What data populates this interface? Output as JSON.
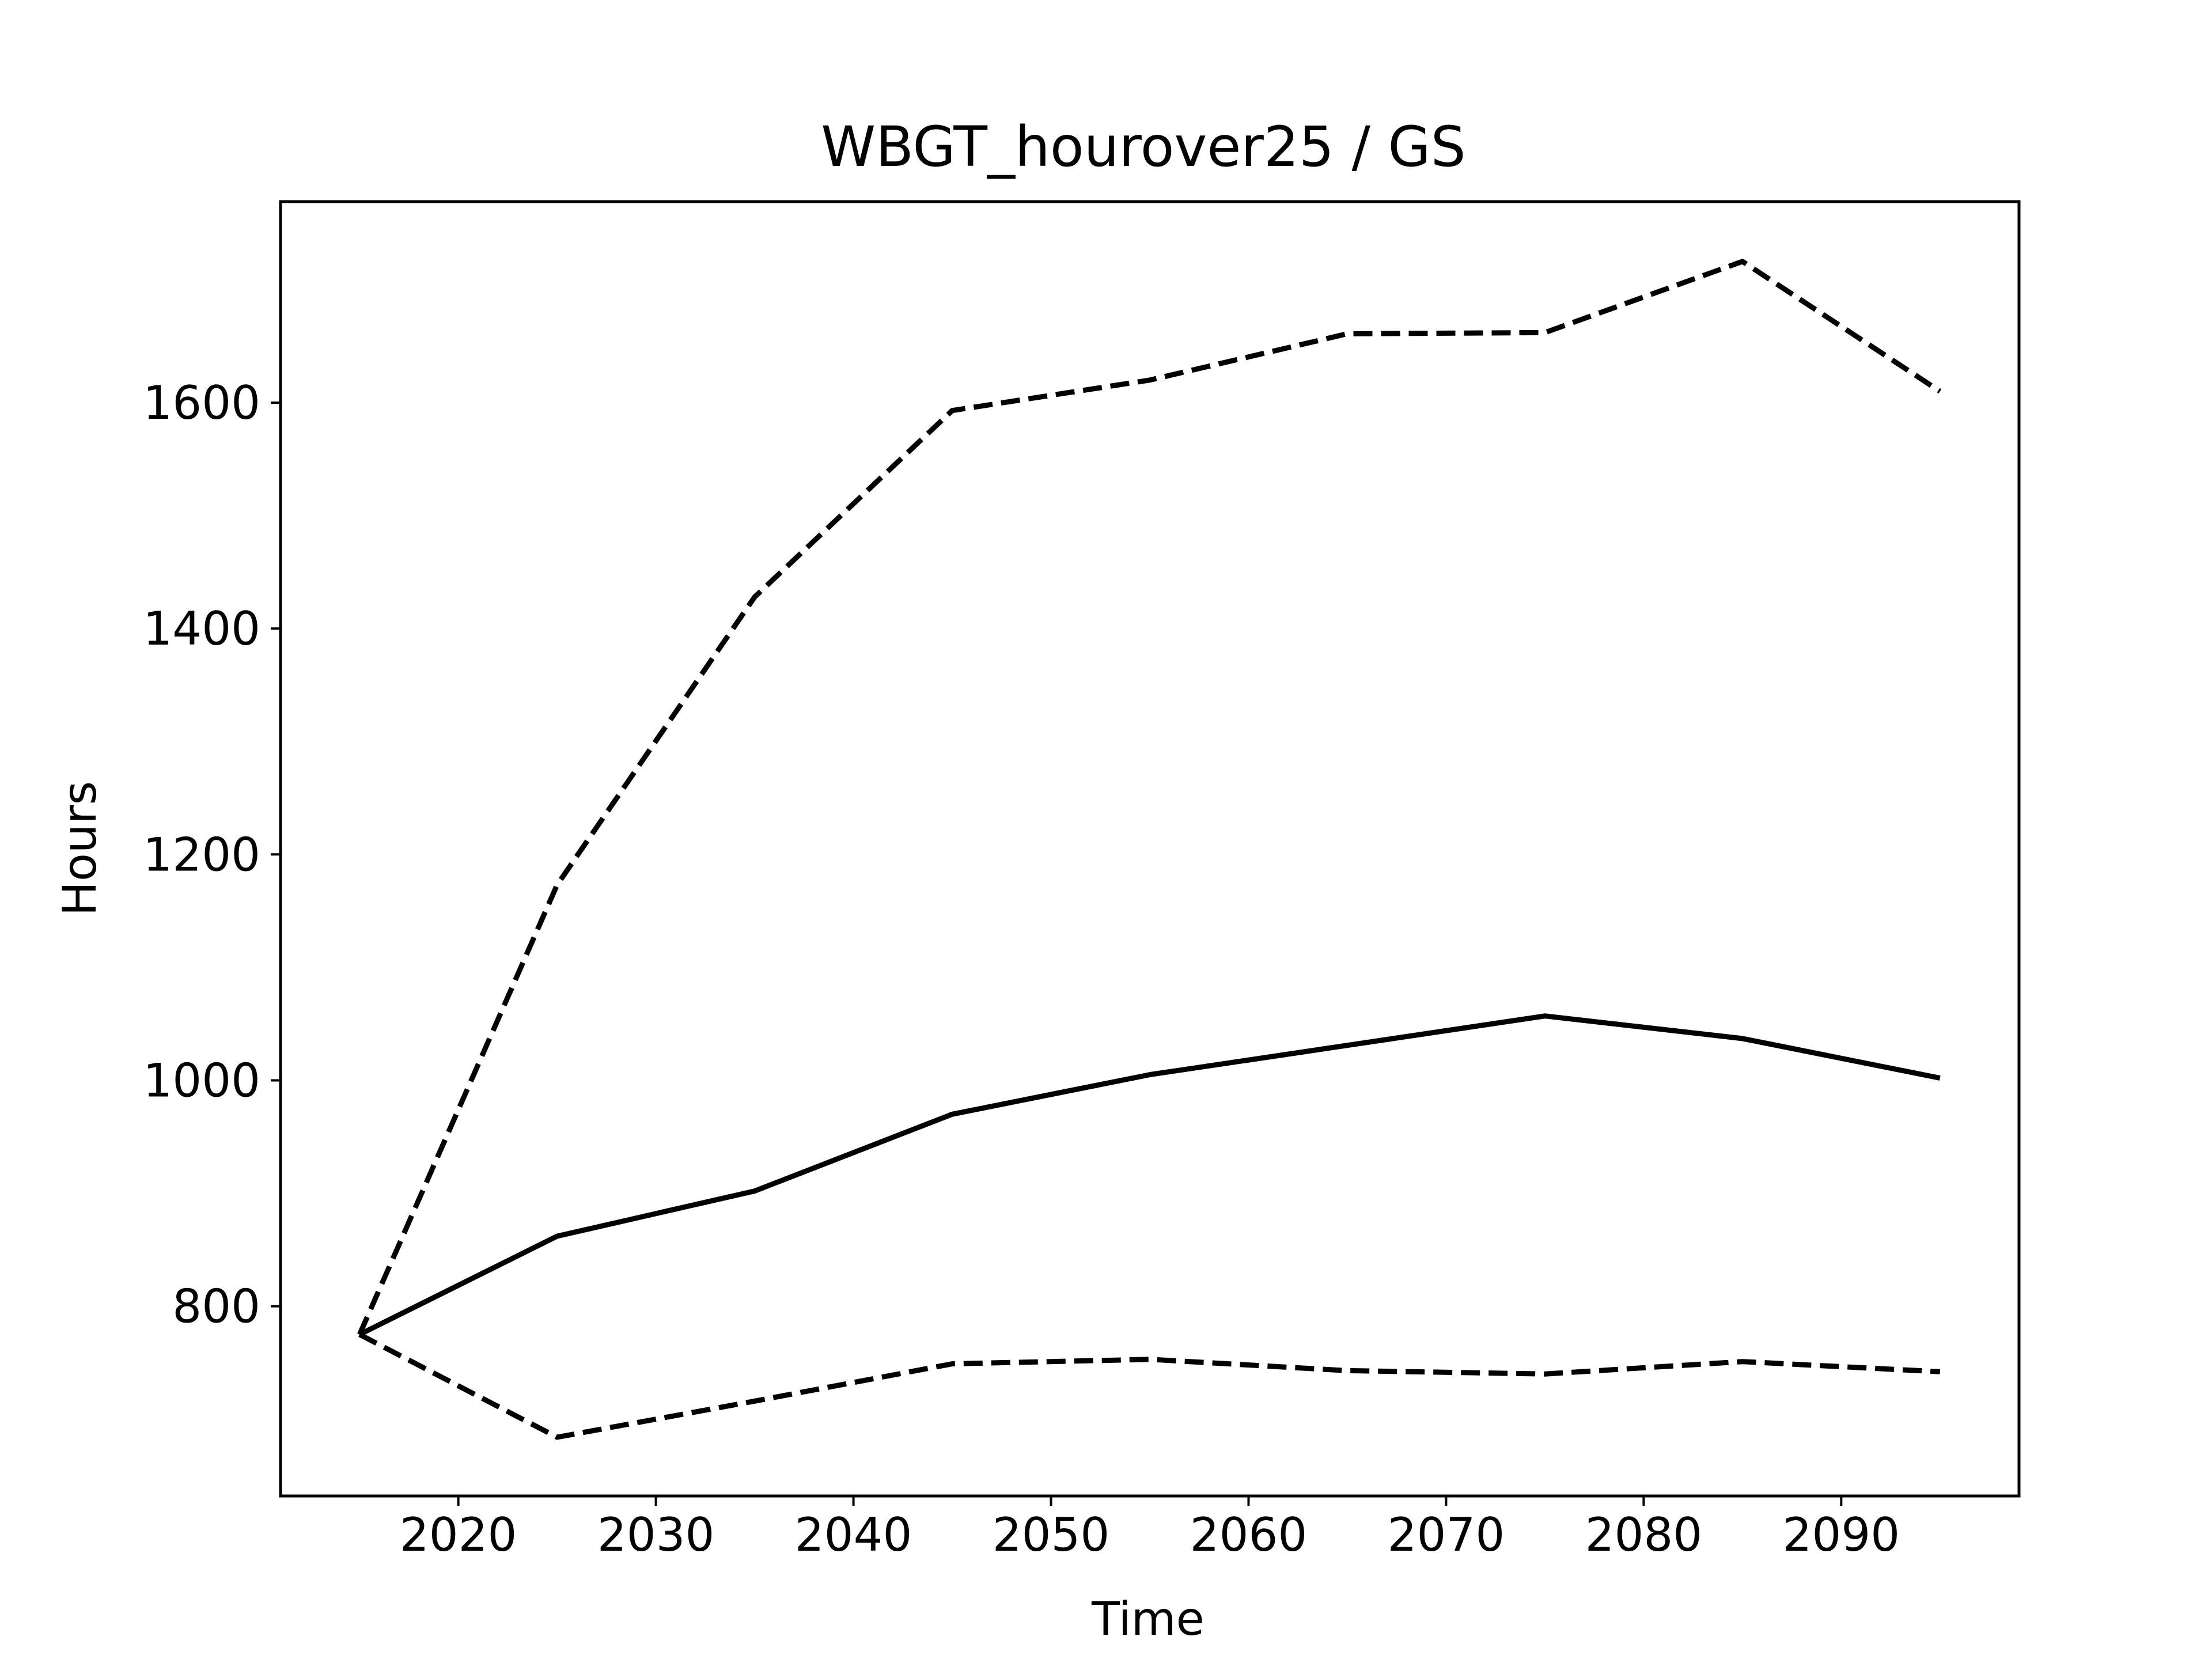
{
  "chart_data": {
    "type": "line",
    "title": "WBGT_hourover25 / GS",
    "xlabel": "Time",
    "ylabel": "Hours",
    "xlim": [
      2011,
      2099
    ],
    "ylim": [
      632,
      1778
    ],
    "grid": false,
    "x": [
      2015,
      2025,
      2035,
      2045,
      2055,
      2065,
      2075,
      2085,
      2095
    ],
    "xticks": [
      2020,
      2030,
      2040,
      2050,
      2060,
      2070,
      2080,
      2090
    ],
    "yticks": [
      800,
      1000,
      1200,
      1400,
      1600
    ],
    "series": [
      {
        "style": "solid",
        "color": "#000000",
        "values": [
          775,
          862,
          902,
          970,
          1005,
          1031,
          1057,
          1037,
          1002
        ]
      },
      {
        "style": "dashed",
        "color": "#000000",
        "values": [
          775,
          1173,
          1428,
          1593,
          1620,
          1661,
          1662,
          1725,
          1610
        ]
      },
      {
        "style": "dashed",
        "color": "#000000",
        "values": [
          775,
          684,
          716,
          749,
          753,
          743,
          740,
          751,
          742
        ]
      }
    ]
  }
}
